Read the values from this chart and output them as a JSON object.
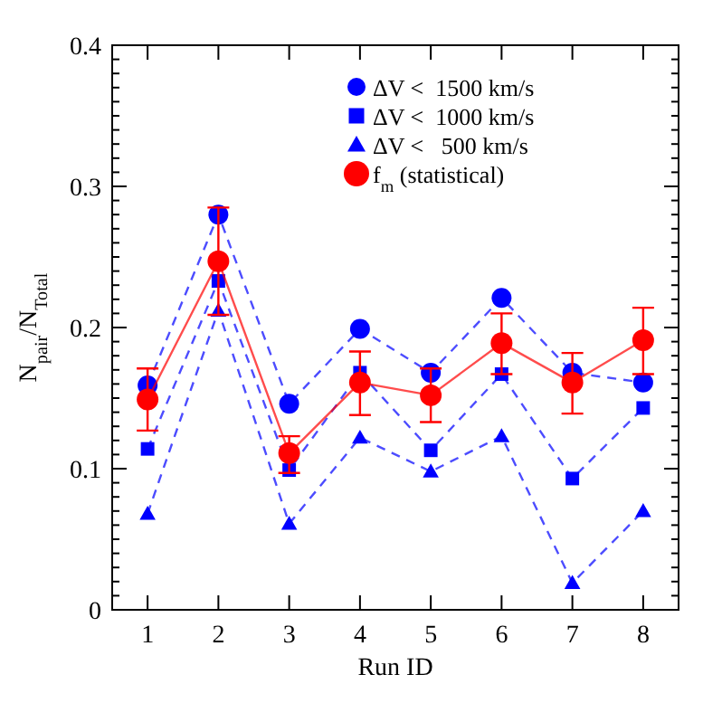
{
  "chart_data": {
    "type": "line",
    "xlabel": "Run ID",
    "ylabel": "N$_{pair}$/N$_{Total}$",
    "x": [
      1,
      2,
      3,
      4,
      5,
      6,
      7,
      8
    ],
    "xlim": [
      0.5,
      8.5
    ],
    "xticks": [
      1,
      2,
      3,
      4,
      5,
      6,
      7,
      8
    ],
    "ylim": [
      0,
      0.4
    ],
    "yticks": [
      0,
      {
        "value": 0.01,
        "label": null
      },
      {
        "value": 0.02,
        "label": null
      },
      {
        "value": 0.03,
        "label": null
      },
      {
        "value": 0.04,
        "label": null
      },
      {
        "value": 0.05,
        "label": null
      },
      {
        "value": 0.06,
        "label": null
      },
      {
        "value": 0.07,
        "label": null
      },
      {
        "value": 0.08,
        "label": null
      },
      {
        "value": 0.09,
        "label": null
      },
      0.1,
      {
        "value": 0.11,
        "label": null
      },
      {
        "value": 0.12,
        "label": null
      },
      {
        "value": 0.13,
        "label": null
      },
      {
        "value": 0.14,
        "label": null
      },
      {
        "value": 0.15,
        "label": null
      },
      {
        "value": 0.16,
        "label": null
      },
      {
        "value": 0.17,
        "label": null
      },
      {
        "value": 0.18,
        "label": null
      },
      {
        "value": 0.19,
        "label": null
      },
      0.2,
      {
        "value": 0.21,
        "label": null
      },
      {
        "value": 0.22,
        "label": null
      },
      {
        "value": 0.23,
        "label": null
      },
      {
        "value": 0.24,
        "label": null
      },
      {
        "value": 0.25,
        "label": null
      },
      {
        "value": 0.26,
        "label": null
      },
      {
        "value": 0.27,
        "label": null
      },
      {
        "value": 0.28,
        "label": null
      },
      {
        "value": 0.29,
        "label": null
      },
      0.3,
      {
        "value": 0.31,
        "label": null
      },
      {
        "value": 0.32,
        "label": null
      },
      {
        "value": 0.33,
        "label": null
      },
      {
        "value": 0.34,
        "label": null
      },
      {
        "value": 0.35,
        "label": null
      },
      {
        "value": 0.36,
        "label": null
      },
      {
        "value": 0.37,
        "label": null
      },
      {
        "value": 0.38,
        "label": null
      },
      {
        "value": 0.39,
        "label": null
      },
      0.4
    ],
    "grid": false,
    "legend": "top right",
    "series": [
      {
        "name": "ΔV <  1500 km/s",
        "color": "#0000ff",
        "marker": "circle",
        "line_style": "dashed",
        "values": [
          0.159,
          0.28,
          0.146,
          0.199,
          0.168,
          0.221,
          0.168,
          0.161
        ]
      },
      {
        "name": "ΔV <  1000 km/s",
        "color": "#0000ff",
        "marker": "square",
        "line_style": "dashed",
        "values": [
          0.114,
          0.233,
          0.099,
          0.168,
          0.113,
          0.167,
          0.093,
          0.143
        ]
      },
      {
        "name": "ΔV <   500 km/s",
        "color": "#0000ff",
        "marker": "triangle",
        "line_style": "dashed",
        "values": [
          0.068,
          0.212,
          0.061,
          0.122,
          0.098,
          0.123,
          0.019,
          0.07
        ]
      },
      {
        "name": "f$_{m}$ (statistical)",
        "color": "#ff0000",
        "marker": "circle",
        "line_style": "solid",
        "values": [
          0.149,
          0.247,
          0.111,
          0.161,
          0.152,
          0.189,
          0.161,
          0.191
        ],
        "errors": [
          [
            0.127,
            0.171
          ],
          [
            0.209,
            0.285
          ],
          [
            0.097,
            0.123
          ],
          [
            0.138,
            0.183
          ],
          [
            0.133,
            0.171
          ],
          [
            0.167,
            0.21
          ],
          [
            0.139,
            0.182
          ],
          [
            0.167,
            0.214
          ]
        ]
      }
    ]
  }
}
